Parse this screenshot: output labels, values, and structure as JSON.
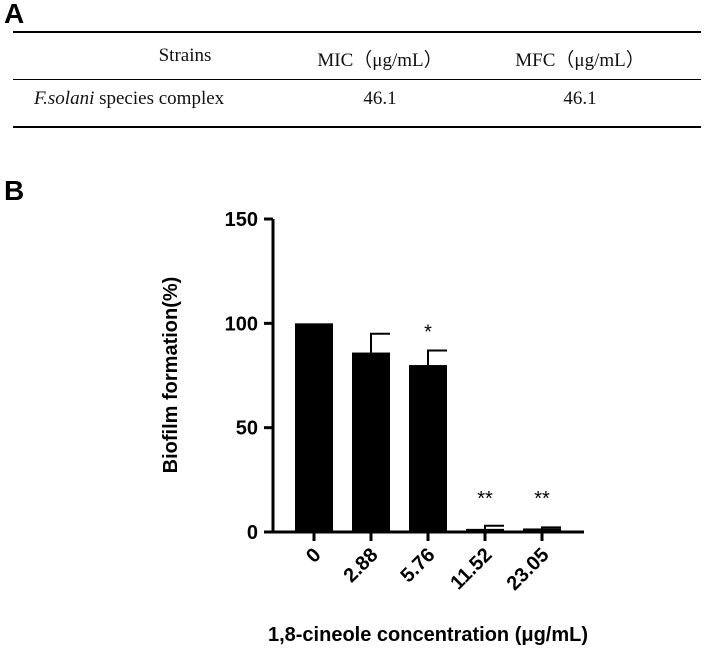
{
  "panel_a": {
    "label": "A",
    "table": {
      "headers": [
        "Strains",
        "MIC（μg/mL）",
        "MFC（μg/mL）"
      ],
      "rows": [
        {
          "strain_italic": "F.solani",
          "strain_rest": " species complex",
          "mic": "46.1",
          "mfc": "46.1"
        }
      ]
    }
  },
  "panel_b": {
    "label": "B"
  },
  "chart_data": {
    "type": "bar",
    "categories": [
      "0",
      "2.88",
      "5.76",
      "11.52",
      "23.05"
    ],
    "values": [
      100,
      86,
      80,
      1.5,
      1.7
    ],
    "error_upper": [
      0,
      9,
      7,
      1.5,
      0.5
    ],
    "significance": [
      "",
      "",
      "*",
      "**",
      "**"
    ],
    "xlabel": "1,8-cineole concentration (μg/mL)",
    "ylabel": "Biofilm formation(%)",
    "ylim": [
      0,
      150
    ],
    "yticks": [
      0,
      50,
      100,
      150
    ],
    "bar_color": "#000000",
    "grid": false
  }
}
